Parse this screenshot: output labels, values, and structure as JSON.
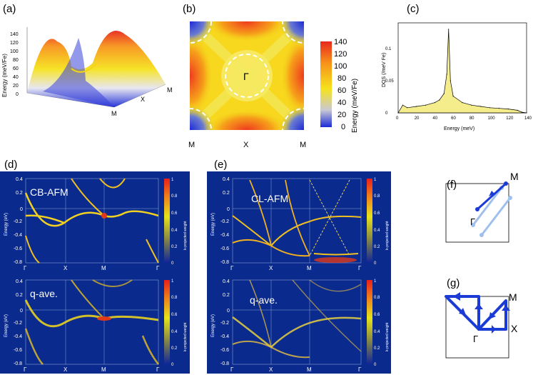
{
  "panels": {
    "a": {
      "label": "(a)",
      "ylabel": "Energy (meV/Fe)",
      "zticks": [
        "0",
        "20",
        "40",
        "60",
        "80",
        "100",
        "120",
        "140"
      ],
      "corner_labels": [
        "M",
        "X",
        "M"
      ]
    },
    "b": {
      "label": "(b)",
      "center_label": "Γ",
      "bottom_labels": [
        "M",
        "X",
        "M"
      ],
      "cbar_ticks": [
        "140",
        "120",
        "100",
        "80",
        "60",
        "40",
        "20",
        "0"
      ],
      "cbar_label": "Energy (meV/Fe)"
    },
    "c": {
      "label": "(c)",
      "xlabel": "Energy (meV)",
      "ylabel": "DOS (/meV Fe)",
      "yticks": [
        "0",
        "0.05",
        "0.1"
      ],
      "xticks": [
        "0",
        "20",
        "40",
        "60",
        "80",
        "100",
        "120",
        "140"
      ]
    },
    "d": {
      "label": "(d)",
      "top_title": "CB-AFM",
      "bottom_title": "q-ave.",
      "ylabel": "Energy (eV)",
      "yticks": [
        "0.4",
        "0.2",
        "0",
        "-0.2",
        "-0.4",
        "-0.6",
        "-0.8"
      ],
      "xticks": [
        "Γ",
        "X",
        "M",
        "Γ"
      ],
      "cbar_ticks": [
        "1",
        "0.8",
        "0.6",
        "0.4",
        "0.2",
        "0"
      ],
      "cbar_label": "k-projected weight"
    },
    "e": {
      "label": "(e)",
      "top_title": "CL-AFM",
      "bottom_title": "q-ave.",
      "ylabel": "Energy (eV)",
      "yticks": [
        "0.4",
        "0.2",
        "0",
        "-0.2",
        "-0.4",
        "-0.6",
        "-0.8"
      ],
      "xticks": [
        "Γ",
        "X",
        "M",
        "Γ"
      ],
      "cbar_ticks": [
        "1",
        "0.8",
        "0.6",
        "0.4",
        "0.2",
        "0"
      ],
      "cbar_label": "k-projected weight"
    },
    "f": {
      "label": "(f)",
      "m_label": "M",
      "g_label": "Γ"
    },
    "g": {
      "label": "(g)",
      "m_label": "M",
      "g_label": "Γ",
      "x_label": "X"
    }
  },
  "chart_data": [
    {
      "type": "area",
      "title": "(c)",
      "xlabel": "Energy (meV)",
      "ylabel": "DOS (/meV Fe)",
      "xlim": [
        0,
        140
      ],
      "ylim": [
        0,
        0.14
      ],
      "x": [
        0,
        5,
        10,
        20,
        30,
        40,
        45,
        50,
        53,
        55,
        57,
        60,
        70,
        80,
        90,
        100,
        110,
        120,
        130,
        135,
        140
      ],
      "values": [
        0,
        0.012,
        0.008,
        0.01,
        0.012,
        0.016,
        0.02,
        0.03,
        0.06,
        0.13,
        0.05,
        0.026,
        0.016,
        0.012,
        0.01,
        0.008,
        0.007,
        0.006,
        0.004,
        0.001,
        0
      ]
    }
  ]
}
